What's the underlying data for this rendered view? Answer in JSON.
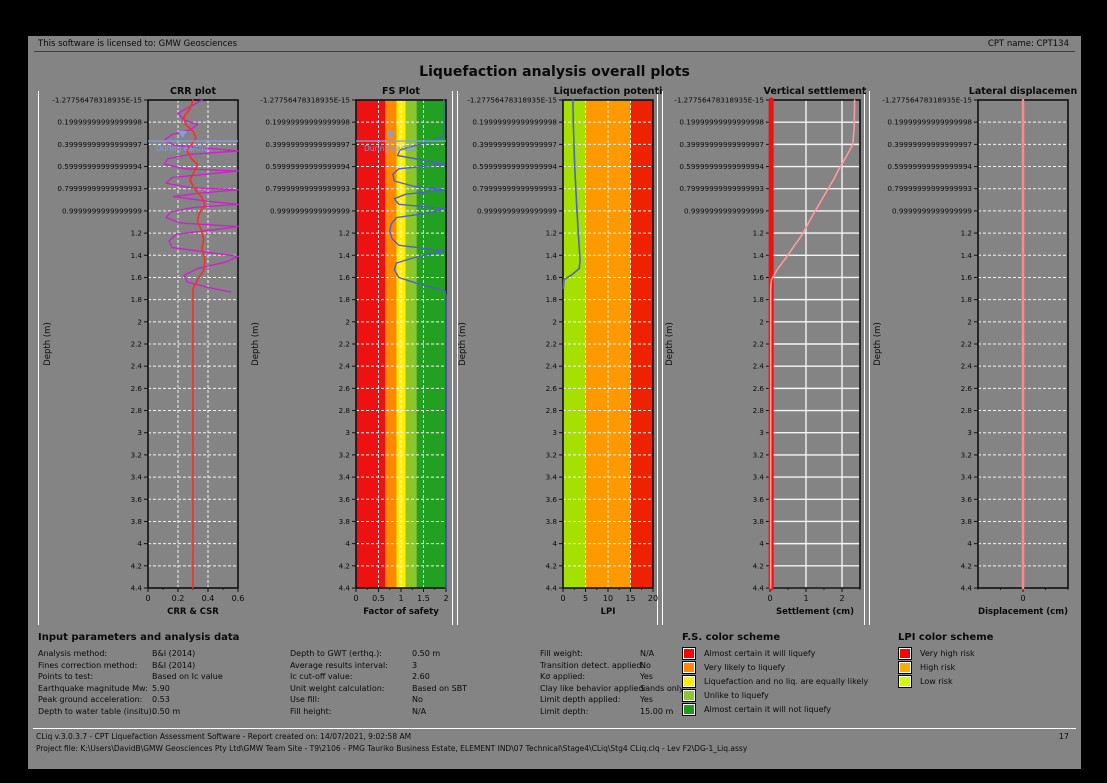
{
  "header": {
    "license_text": "This software is licensed to: GMW Geosciences",
    "cpt_name": "CPT name: CPT134"
  },
  "title": "Liquefaction analysis overall plots",
  "depth_axis": {
    "label": "Depth (m)",
    "min": 0,
    "max": 4.4,
    "step": 0.2,
    "tick_labels": [
      "-1.27756478318935E-15",
      "0.19999999999999998",
      "0.39999999999999997",
      "0.59999999999999994",
      "0.79999999999999993",
      "0.9999999999999999",
      "1.2",
      "1.4",
      "1.6",
      "1.8",
      "2",
      "2.2",
      "2.4",
      "2.6",
      "2.8",
      "3",
      "3.2",
      "3.4",
      "3.6",
      "3.8",
      "4",
      "4.2",
      "4.4"
    ]
  },
  "chart_data": [
    {
      "type": "line",
      "name": "crr-plot",
      "title": "CRR plot",
      "xlabel": "CRR & CSR",
      "xlim": [
        0,
        0.6
      ],
      "xticks": {
        "values": [
          0,
          0.2,
          0.4,
          0.6
        ],
        "labels": [
          "0",
          "0.2",
          "0.4",
          "0.6"
        ]
      },
      "minor_step": 0.1,
      "grid_x": [
        0.2,
        0.4
      ],
      "bands": [],
      "annotation": {
        "text": "During earthq.",
        "depth": 0.37,
        "color": "#7f9fe8"
      },
      "series": [
        {
          "name": "crr-curve",
          "color": "#cc22cc",
          "width": 1.4,
          "points": [
            [
              0.36,
              0.0
            ],
            [
              0.28,
              0.06
            ],
            [
              0.2,
              0.12
            ],
            [
              0.24,
              0.18
            ],
            [
              0.33,
              0.22
            ],
            [
              0.28,
              0.27
            ],
            [
              0.16,
              0.31
            ],
            [
              0.11,
              0.36
            ],
            [
              0.18,
              0.41
            ],
            [
              0.45,
              0.44
            ],
            [
              0.6,
              0.46
            ],
            [
              0.28,
              0.49
            ],
            [
              0.13,
              0.53
            ],
            [
              0.11,
              0.58
            ],
            [
              0.25,
              0.62
            ],
            [
              0.6,
              0.64
            ],
            [
              0.38,
              0.67
            ],
            [
              0.16,
              0.7
            ],
            [
              0.12,
              0.75
            ],
            [
              0.28,
              0.79
            ],
            [
              0.6,
              0.81
            ],
            [
              0.34,
              0.84
            ],
            [
              0.17,
              0.87
            ],
            [
              0.38,
              0.91
            ],
            [
              0.6,
              0.94
            ],
            [
              0.3,
              0.97
            ],
            [
              0.15,
              1.01
            ],
            [
              0.12,
              1.06
            ],
            [
              0.22,
              1.11
            ],
            [
              0.6,
              1.14
            ],
            [
              0.44,
              1.17
            ],
            [
              0.19,
              1.21
            ],
            [
              0.14,
              1.27
            ],
            [
              0.16,
              1.33
            ],
            [
              0.38,
              1.37
            ],
            [
              0.6,
              1.41
            ],
            [
              0.52,
              1.46
            ],
            [
              0.33,
              1.52
            ],
            [
              0.24,
              1.58
            ],
            [
              0.26,
              1.64
            ],
            [
              0.4,
              1.69
            ],
            [
              0.55,
              1.73
            ]
          ]
        },
        {
          "name": "csr-curve",
          "color": "#ff2a2a",
          "width": 1.6,
          "points": [
            [
              0.3,
              0.0
            ],
            [
              0.28,
              0.08
            ],
            [
              0.24,
              0.15
            ],
            [
              0.25,
              0.22
            ],
            [
              0.3,
              0.28
            ],
            [
              0.32,
              0.34
            ],
            [
              0.29,
              0.4
            ],
            [
              0.26,
              0.46
            ],
            [
              0.29,
              0.53
            ],
            [
              0.33,
              0.58
            ],
            [
              0.31,
              0.64
            ],
            [
              0.28,
              0.72
            ],
            [
              0.31,
              0.8
            ],
            [
              0.36,
              0.88
            ],
            [
              0.38,
              0.95
            ],
            [
              0.34,
              1.02
            ],
            [
              0.33,
              1.1
            ],
            [
              0.36,
              1.18
            ],
            [
              0.37,
              1.26
            ],
            [
              0.36,
              1.34
            ],
            [
              0.38,
              1.44
            ],
            [
              0.37,
              1.54
            ],
            [
              0.33,
              1.62
            ],
            [
              0.3,
              1.7
            ],
            [
              0.3,
              4.4
            ]
          ]
        }
      ]
    },
    {
      "type": "line",
      "name": "fs-plot",
      "title": "FS Plot",
      "xlabel": "Factor of safety",
      "xlim": [
        0,
        2
      ],
      "xticks": {
        "values": [
          0,
          0.5,
          1,
          1.5,
          2
        ],
        "labels": [
          "0",
          "0.5",
          "1",
          "1.5",
          "2"
        ]
      },
      "minor_step": 0.25,
      "grid_x": [
        0.5,
        1,
        1.5
      ],
      "bands": [
        {
          "from": 0,
          "to": 0.65,
          "color": "#ee1111"
        },
        {
          "from": 0.65,
          "to": 0.9,
          "color": "#ff8800"
        },
        {
          "from": 0.9,
          "to": 1.1,
          "color": "#ffee00"
        },
        {
          "from": 1.1,
          "to": 1.35,
          "color": "#8bc72a"
        },
        {
          "from": 1.35,
          "to": 2,
          "color": "#22a022"
        }
      ],
      "annotation": {
        "text": "During earthq.",
        "depth": 0.37,
        "color": "#7f9fe8"
      },
      "series": [
        {
          "name": "fs-curve",
          "color": "#4f5fd0",
          "width": 1.4,
          "points": [
            [
              1.95,
              0.0
            ],
            [
              1.95,
              0.33
            ],
            [
              1.4,
              0.4
            ],
            [
              0.98,
              0.45
            ],
            [
              0.92,
              0.5
            ],
            [
              1.6,
              0.55
            ],
            [
              1.98,
              0.58
            ],
            [
              0.95,
              0.62
            ],
            [
              0.82,
              0.67
            ],
            [
              0.85,
              0.73
            ],
            [
              1.3,
              0.78
            ],
            [
              1.98,
              0.81
            ],
            [
              1.1,
              0.85
            ],
            [
              0.85,
              0.89
            ],
            [
              0.95,
              0.94
            ],
            [
              1.98,
              0.98
            ],
            [
              1.6,
              1.02
            ],
            [
              0.9,
              1.06
            ],
            [
              0.78,
              1.12
            ],
            [
              0.75,
              1.18
            ],
            [
              0.8,
              1.25
            ],
            [
              0.95,
              1.31
            ],
            [
              1.98,
              1.36
            ],
            [
              1.3,
              1.42
            ],
            [
              0.9,
              1.47
            ],
            [
              0.85,
              1.53
            ],
            [
              0.95,
              1.6
            ],
            [
              1.4,
              1.66
            ],
            [
              1.98,
              1.72
            ],
            [
              2.0,
              1.78
            ],
            [
              2.0,
              4.4
            ]
          ]
        }
      ]
    },
    {
      "type": "line",
      "name": "liquefaction-potential-plot",
      "title": "Liquefaction potenti",
      "xlabel": "LPI",
      "xlim": [
        0,
        20
      ],
      "xticks": {
        "values": [
          0,
          5,
          10,
          15,
          20
        ],
        "labels": [
          "0",
          "5",
          "10",
          "15",
          "20"
        ]
      },
      "minor_step": 2.5,
      "grid_x": [
        5,
        10,
        15
      ],
      "bands": [
        {
          "from": 0,
          "to": 5,
          "color": "#a5e000"
        },
        {
          "from": 5,
          "to": 15,
          "color": "#ff9900"
        },
        {
          "from": 15,
          "to": 20,
          "color": "#ee2200"
        }
      ],
      "series": [
        {
          "name": "lpi-curve",
          "color": "#4f5fd0",
          "width": 1.6,
          "points": [
            [
              2.2,
              0.0
            ],
            [
              2.3,
              0.2
            ],
            [
              2.45,
              0.4
            ],
            [
              2.6,
              0.6
            ],
            [
              2.85,
              0.8
            ],
            [
              3.1,
              1.0
            ],
            [
              3.4,
              1.2
            ],
            [
              3.65,
              1.35
            ],
            [
              3.8,
              1.45
            ],
            [
              3.6,
              1.52
            ],
            [
              1.8,
              1.58
            ],
            [
              0.2,
              1.62
            ],
            [
              0.1,
              1.7
            ]
          ]
        }
      ]
    },
    {
      "type": "line",
      "name": "vertical-settlement-plot",
      "title": "Vertical settlement",
      "xlabel": "Settlement (cm)",
      "xlim": [
        0,
        2.5
      ],
      "xticks": {
        "values": [
          0,
          1,
          2
        ],
        "labels": [
          "0",
          "1",
          "2"
        ]
      },
      "minor_step": 0.5,
      "grid_x": [
        1,
        2
      ],
      "grid_solid": true,
      "bands": [],
      "series": [
        {
          "name": "settlement-zero-line",
          "color": "#ee1111",
          "width": 5,
          "points": [
            [
              0.03,
              0
            ],
            [
              0.03,
              4.4
            ]
          ]
        },
        {
          "name": "settlement-curve",
          "color": "#ff9a9a",
          "width": 1.6,
          "points": [
            [
              2.35,
              0.0
            ],
            [
              2.34,
              0.25
            ],
            [
              2.3,
              0.4
            ],
            [
              2.1,
              0.52
            ],
            [
              1.92,
              0.62
            ],
            [
              1.76,
              0.72
            ],
            [
              1.58,
              0.82
            ],
            [
              1.4,
              0.92
            ],
            [
              1.22,
              1.02
            ],
            [
              1.05,
              1.12
            ],
            [
              0.88,
              1.22
            ],
            [
              0.66,
              1.32
            ],
            [
              0.45,
              1.42
            ],
            [
              0.22,
              1.52
            ],
            [
              0.04,
              1.62
            ],
            [
              0.02,
              1.7
            ],
            [
              0.02,
              4.4
            ]
          ]
        }
      ]
    },
    {
      "type": "line",
      "name": "lateral-displacement-plot",
      "title": "Lateral displacemen",
      "xlabel": "Displacement (cm)",
      "xlim": [
        -1,
        1
      ],
      "xticks": {
        "values": [
          0
        ],
        "labels": [
          "0"
        ]
      },
      "minor_step": 0.5,
      "grid_x": [],
      "bands": [],
      "series": [
        {
          "name": "displacement-zero-line",
          "color": "#ff8888",
          "width": 2.5,
          "points": [
            [
              0,
              0
            ],
            [
              0,
              4.4
            ]
          ]
        }
      ]
    }
  ],
  "input_parameters": {
    "heading": "Input parameters and analysis data",
    "columns": [
      [
        {
          "label": "Analysis method:",
          "value": "B&I (2014)"
        },
        {
          "label": "Fines correction method:",
          "value": "B&I (2014)"
        },
        {
          "label": "Points to test:",
          "value": "Based on Ic value"
        },
        {
          "label": "Earthquake magnitude Mw:",
          "value": "5.90"
        },
        {
          "label": "Peak ground acceleration:",
          "value": "0.53"
        },
        {
          "label": "Depth to water table (insitu):",
          "value": "0.50 m"
        }
      ],
      [
        {
          "label": "Depth to GWT (erthq.):",
          "value": "0.50 m"
        },
        {
          "label": "Average results interval:",
          "value": "3"
        },
        {
          "label": "Ic cut-off value:",
          "value": "2.60"
        },
        {
          "label": "Unit weight calculation:",
          "value": "Based on SBT"
        },
        {
          "label": "Use fill:",
          "value": "No"
        },
        {
          "label": "Fill height:",
          "value": "N/A"
        }
      ],
      [
        {
          "label": "Fill weight:",
          "value": "N/A"
        },
        {
          "label": "Transition detect. applied:",
          "value": "No"
        },
        {
          "label": "Kσ applied:",
          "value": "Yes"
        },
        {
          "label": "Clay like behavior applied:",
          "value": "Sands only"
        },
        {
          "label": "Limit depth applied:",
          "value": "Yes"
        },
        {
          "label": "Limit depth:",
          "value": "15.00 m"
        }
      ]
    ]
  },
  "fs_scheme": {
    "heading": "F.S. color scheme",
    "items": [
      {
        "color": "#ff0000",
        "label": "Almost certain it will liquefy"
      },
      {
        "color": "#ff8800",
        "label": "Very likely to liquefy"
      },
      {
        "color": "#ffee00",
        "label": "Liquefaction and no liq. are equally likely"
      },
      {
        "color": "#8bc72a",
        "label": "Unlike to liquefy"
      },
      {
        "color": "#1e9a1e",
        "label": "Almost certain it will not liquefy"
      }
    ]
  },
  "lpi_scheme": {
    "heading": "LPI color scheme",
    "items": [
      {
        "color": "#ff0000",
        "label": "Very high risk"
      },
      {
        "color": "#ffaa00",
        "label": "High risk"
      },
      {
        "color": "#ccff00",
        "label": "Low risk"
      }
    ]
  },
  "footer": {
    "line1": "CLiq v.3.0.3.7 - CPT Liquefaction Assessment Software - Report created on: 14/07/2021, 9:02:58 AM",
    "page_number": "17",
    "line2": "Project file: K:\\Users\\DavidB\\GMW Geosciences Pty Ltd\\GMW Team Site - T9\\2106 - PMG Tauriko Business Estate, ELEMENT IND\\07 Technical\\Stage4\\CLiq\\Stg4 CLiq.clq - Lev F2\\DG-1_Liq.assy"
  }
}
